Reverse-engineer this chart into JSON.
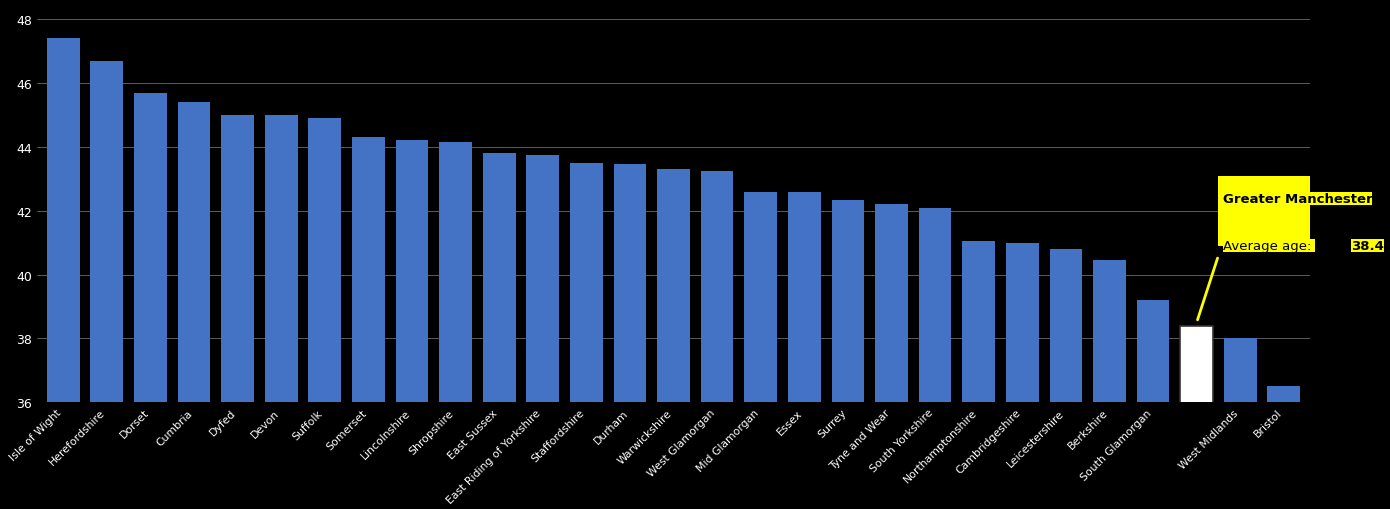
{
  "categories": [
    "Isle of Wight",
    "Herefordshire",
    "Dorset",
    "Cumbria",
    "Dyfed",
    "Devon",
    "Suffolk",
    "Somerset",
    "Lincolnshire",
    "Shropshire",
    "East Sussex",
    "East Riding of Yorkshire",
    "Staffordshire",
    "Durham",
    "Warwickshire",
    "West Glamorgan",
    "Mid Glamorgan",
    "Essex",
    "Surrey",
    "Tyne and Wear",
    "South Yorkshire",
    "Northamptonshire",
    "Cambridgeshire",
    "Leicestershire",
    "Berkshire",
    "South Glamorgan",
    "Greater Manchester",
    "West Midlands",
    "Bristol"
  ],
  "values": [
    47.4,
    46.7,
    45.7,
    45.4,
    45.0,
    45.0,
    44.9,
    44.3,
    44.2,
    44.15,
    43.8,
    43.75,
    43.5,
    43.45,
    43.3,
    43.25,
    42.6,
    42.6,
    42.35,
    42.2,
    42.1,
    41.05,
    41.0,
    40.8,
    40.45,
    39.2,
    38.4,
    38.0,
    36.5
  ],
  "highlight_label": "Greater Manchester",
  "highlight_value": 38.4,
  "bar_color": "#4472c4",
  "highlight_bar_color": "#ffffff",
  "highlight_bar_edge": "#333333",
  "background_color": "#000000",
  "text_color": "#ffffff",
  "annotation_bg": "#ffff00",
  "annotation_text_color": "#000000",
  "ylim": [
    36,
    48.5
  ],
  "yticks": [
    36,
    38,
    40,
    42,
    44,
    46,
    48
  ],
  "grid_color": "#ffffff",
  "grid_alpha": 0.5,
  "grid_lw": 0.5,
  "bar_width": 0.75,
  "xlabel_fontsize": 7.8,
  "ylabel_fontsize": 9
}
